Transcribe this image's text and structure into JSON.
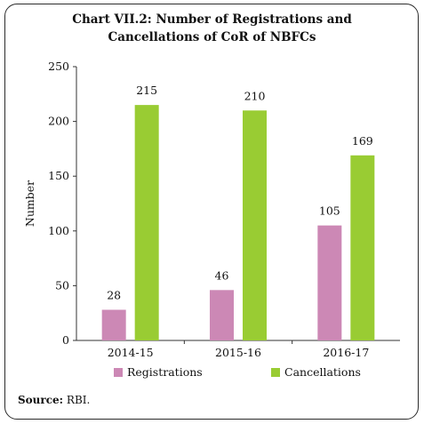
{
  "title_line1": "Chart VII.2: Number of Registrations and",
  "title_line2": "Cancellations of CoR of NBFCs",
  "source_label": "Source:",
  "source_text": "RBI.",
  "chart_data": {
    "type": "bar",
    "categories": [
      "2014-15",
      "2015-16",
      "2016-17"
    ],
    "series": [
      {
        "name": "Registrations",
        "values": [
          28,
          46,
          105
        ],
        "color": "#cc88b5"
      },
      {
        "name": "Cancellations",
        "values": [
          215,
          210,
          169
        ],
        "color": "#99cc33"
      }
    ],
    "ylabel": "Number",
    "ylim": [
      0,
      250
    ],
    "yticks": [
      0,
      50,
      100,
      150,
      200,
      250
    ],
    "grid": false,
    "legend_position": "bottom"
  }
}
